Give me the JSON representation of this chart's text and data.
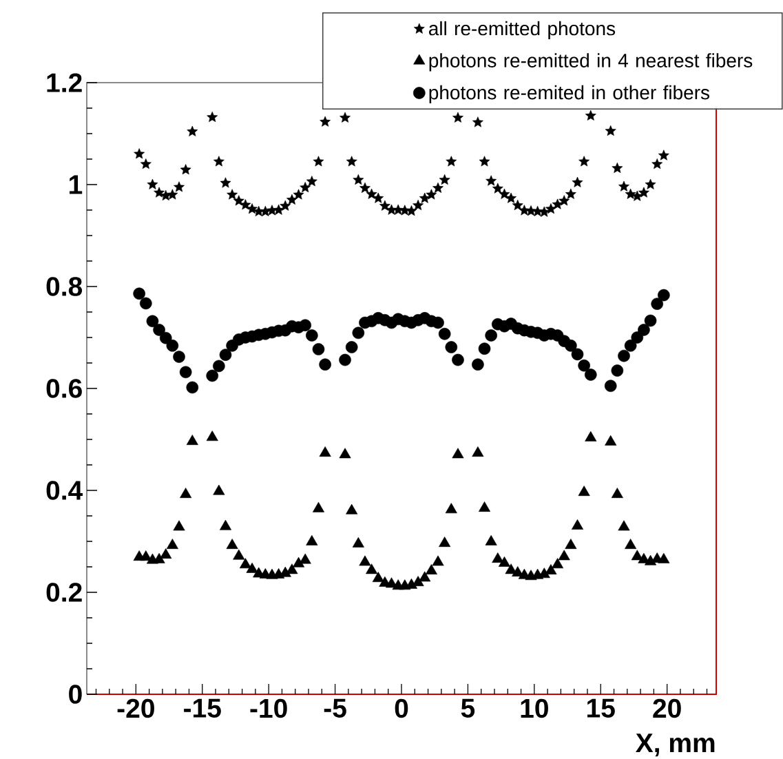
{
  "chart_data": {
    "type": "scatter",
    "xlabel": "X, mm",
    "xlim": [
      -23.7,
      23.7
    ],
    "ylim": [
      0,
      1.2
    ],
    "xticks": [
      {
        "value": -23,
        "label": null
      },
      {
        "value": -22,
        "label": null
      },
      {
        "value": -21,
        "label": null
      },
      -20,
      {
        "value": -19,
        "label": null
      },
      {
        "value": -18,
        "label": null
      },
      {
        "value": -17,
        "label": null
      },
      {
        "value": -16,
        "label": null
      },
      -15,
      {
        "value": -14,
        "label": null
      },
      {
        "value": -13,
        "label": null
      },
      {
        "value": -12,
        "label": null
      },
      {
        "value": -11,
        "label": null
      },
      -10,
      {
        "value": -9,
        "label": null
      },
      {
        "value": -8,
        "label": null
      },
      {
        "value": -7,
        "label": null
      },
      {
        "value": -6,
        "label": null
      },
      -5,
      {
        "value": -4,
        "label": null
      },
      {
        "value": -3,
        "label": null
      },
      {
        "value": -2,
        "label": null
      },
      {
        "value": -1,
        "label": null
      },
      0,
      {
        "value": 1,
        "label": null
      },
      {
        "value": 2,
        "label": null
      },
      {
        "value": 3,
        "label": null
      },
      {
        "value": 4,
        "label": null
      },
      5,
      {
        "value": 6,
        "label": null
      },
      {
        "value": 7,
        "label": null
      },
      {
        "value": 8,
        "label": null
      },
      {
        "value": 9,
        "label": null
      },
      10,
      {
        "value": 11,
        "label": null
      },
      {
        "value": 12,
        "label": null
      },
      {
        "value": 13,
        "label": null
      },
      {
        "value": 14,
        "label": null
      },
      15,
      {
        "value": 16,
        "label": null
      },
      {
        "value": 17,
        "label": null
      },
      {
        "value": 18,
        "label": null
      },
      {
        "value": 19,
        "label": null
      },
      20,
      {
        "value": 21,
        "label": null
      },
      {
        "value": 22,
        "label": null
      },
      {
        "value": 23,
        "label": null
      }
    ],
    "yticks": [
      0,
      {
        "value": 0.05,
        "label": null
      },
      {
        "value": 0.1,
        "label": null
      },
      {
        "value": 0.15,
        "label": null
      },
      0.2,
      {
        "value": 0.25,
        "label": null
      },
      {
        "value": 0.3,
        "label": null
      },
      {
        "value": 0.35,
        "label": null
      },
      0.4,
      {
        "value": 0.45,
        "label": null
      },
      {
        "value": 0.5,
        "label": null
      },
      {
        "value": 0.55,
        "label": null
      },
      0.6,
      {
        "value": 0.65,
        "label": null
      },
      {
        "value": 0.7,
        "label": null
      },
      {
        "value": 0.75,
        "label": null
      },
      0.8,
      {
        "value": 0.85,
        "label": null
      },
      {
        "value": 0.9,
        "label": null
      },
      {
        "value": 0.95,
        "label": null
      },
      1,
      {
        "value": 1.05,
        "label": null
      },
      {
        "value": 1.1,
        "label": null
      },
      {
        "value": 1.15,
        "label": null
      },
      1.2
    ],
    "legend": "top right",
    "x": [
      -19.75,
      -19.25,
      -18.75,
      -18.25,
      -17.75,
      -17.25,
      -16.75,
      -16.25,
      -15.75,
      -14.25,
      -13.75,
      -13.25,
      -12.75,
      -12.25,
      -11.75,
      -11.25,
      -10.75,
      -10.25,
      -9.75,
      -9.25,
      -8.75,
      -8.25,
      -7.75,
      -7.25,
      -6.75,
      -6.25,
      -5.75,
      -4.25,
      -3.75,
      -3.25,
      -2.75,
      -2.25,
      -1.75,
      -1.25,
      -0.75,
      -0.25,
      0.25,
      0.75,
      1.25,
      1.75,
      2.25,
      2.75,
      3.25,
      3.75,
      4.25,
      5.75,
      6.25,
      6.75,
      7.25,
      7.75,
      8.25,
      8.75,
      9.25,
      9.75,
      10.25,
      10.75,
      11.25,
      11.75,
      12.25,
      12.75,
      13.25,
      13.75,
      14.25,
      15.75,
      16.25,
      16.75,
      17.25,
      17.75,
      18.25,
      18.75,
      19.25,
      19.75
    ],
    "series": [
      {
        "name": "all re-emitted photons",
        "color": "#000000",
        "marker": "star",
        "values": [
          1.06,
          1.04,
          1.0,
          0.984,
          0.978,
          0.98,
          0.995,
          1.029,
          1.104,
          1.132,
          1.045,
          1.003,
          0.98,
          0.968,
          0.96,
          0.952,
          0.947,
          0.947,
          0.949,
          0.95,
          0.958,
          0.97,
          0.98,
          0.994,
          1.006,
          1.045,
          1.123,
          1.131,
          1.045,
          1.009,
          0.993,
          0.981,
          0.973,
          0.958,
          0.95,
          0.95,
          0.949,
          0.948,
          0.959,
          0.973,
          0.98,
          0.993,
          1.009,
          1.045,
          1.131,
          1.122,
          1.045,
          1.007,
          0.992,
          0.981,
          0.973,
          0.959,
          0.949,
          0.948,
          0.947,
          0.946,
          0.952,
          0.961,
          0.968,
          0.981,
          1.004,
          1.045,
          1.135,
          1.105,
          1.032,
          0.996,
          0.981,
          0.977,
          0.984,
          1.0,
          1.04,
          1.057
        ]
      },
      {
        "name": "photons re-emitted in 4 nearest fibers",
        "color": "#000000",
        "marker": "triangle",
        "values": [
          0.269,
          0.269,
          0.263,
          0.264,
          0.273,
          0.292,
          0.328,
          0.392,
          0.496,
          0.504,
          0.398,
          0.329,
          0.292,
          0.271,
          0.254,
          0.245,
          0.236,
          0.234,
          0.233,
          0.234,
          0.237,
          0.243,
          0.256,
          0.263,
          0.299,
          0.364,
          0.473,
          0.47,
          0.36,
          0.295,
          0.259,
          0.243,
          0.227,
          0.218,
          0.216,
          0.212,
          0.212,
          0.214,
          0.219,
          0.228,
          0.242,
          0.259,
          0.296,
          0.362,
          0.47,
          0.473,
          0.365,
          0.299,
          0.265,
          0.257,
          0.243,
          0.238,
          0.233,
          0.231,
          0.233,
          0.235,
          0.242,
          0.254,
          0.27,
          0.292,
          0.33,
          0.396,
          0.503,
          0.495,
          0.392,
          0.328,
          0.292,
          0.27,
          0.264,
          0.26,
          0.265,
          0.264
        ]
      },
      {
        "name": "photons re-emited in other fibers",
        "color": "#000000",
        "marker": "circle",
        "values": [
          0.786,
          0.767,
          0.732,
          0.715,
          0.699,
          0.684,
          0.662,
          0.632,
          0.602,
          0.625,
          0.644,
          0.666,
          0.684,
          0.696,
          0.7,
          0.702,
          0.705,
          0.707,
          0.71,
          0.713,
          0.714,
          0.722,
          0.72,
          0.724,
          0.704,
          0.677,
          0.647,
          0.656,
          0.681,
          0.709,
          0.729,
          0.732,
          0.738,
          0.734,
          0.729,
          0.736,
          0.732,
          0.729,
          0.734,
          0.738,
          0.732,
          0.729,
          0.707,
          0.681,
          0.656,
          0.647,
          0.678,
          0.704,
          0.726,
          0.722,
          0.727,
          0.718,
          0.714,
          0.711,
          0.709,
          0.704,
          0.707,
          0.704,
          0.693,
          0.684,
          0.667,
          0.645,
          0.627,
          0.605,
          0.635,
          0.664,
          0.684,
          0.7,
          0.715,
          0.733,
          0.766,
          0.783
        ]
      }
    ]
  }
}
